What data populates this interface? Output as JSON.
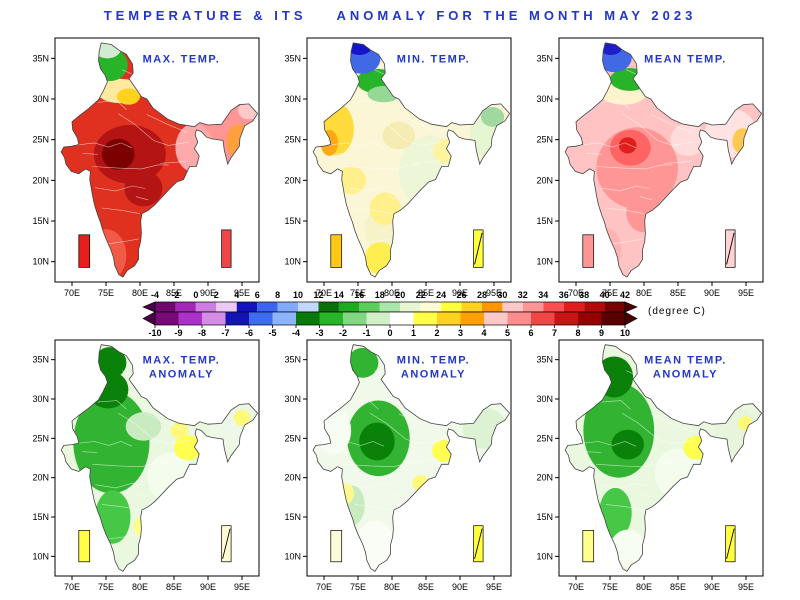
{
  "title": "TEMPERATURE & ITS    ANOMALY FOR THE MONTH MAY 2023",
  "unit_label": "(degree C)",
  "colors": {
    "accent": "#2236c8",
    "frame": "#000000"
  },
  "axis": {
    "x_ticks": [
      {
        "label": "70E",
        "lon": 70
      },
      {
        "label": "75E",
        "lon": 75
      },
      {
        "label": "80E",
        "lon": 80
      },
      {
        "label": "85E",
        "lon": 85
      },
      {
        "label": "90E",
        "lon": 90
      },
      {
        "label": "95E",
        "lon": 95
      }
    ],
    "y_ticks": [
      {
        "label": "35N",
        "lat": 35
      },
      {
        "label": "30N",
        "lat": 30
      },
      {
        "label": "25N",
        "lat": 25
      },
      {
        "label": "20N",
        "lat": 20
      },
      {
        "label": "15N",
        "lat": 15
      },
      {
        "label": "10N",
        "lat": 10
      }
    ]
  },
  "colorbars": [
    {
      "labels_position": "above",
      "labels": [
        "-4",
        "-2",
        "0",
        "2",
        "4",
        "6",
        "8",
        "10",
        "12",
        "14",
        "16",
        "18",
        "20",
        "22",
        "24",
        "26",
        "28",
        "30",
        "32",
        "34",
        "36",
        "38",
        "40",
        "42"
      ],
      "segment_colors": [
        "#6e0a6e",
        "#a028b4",
        "#cd7ce1",
        "#ecc8f5",
        "#1414be",
        "#3c64f0",
        "#82aaff",
        "#c3d8ff",
        "#0a6e0a",
        "#1eaa1e",
        "#5ace5a",
        "#aae6aa",
        "#e6f7d2",
        "#fffbd2",
        "#ffff3c",
        "#ffd21e",
        "#ff9600",
        "#ffc8c8",
        "#ff9696",
        "#ff5050",
        "#e11e1e",
        "#b40a0a",
        "#780000"
      ],
      "left_arrow": "#4b004b",
      "right_arrow": "#4b0000"
    },
    {
      "labels_position": "below",
      "labels": [
        "-10",
        "-9",
        "-8",
        "-7",
        "-6",
        "-5",
        "-4",
        "-3",
        "-2",
        "-1",
        "0",
        "1",
        "2",
        "3",
        "4",
        "5",
        "6",
        "7",
        "8",
        "9",
        "10"
      ],
      "segment_colors": [
        "#780a78",
        "#aa32c8",
        "#d48ce6",
        "#1414b4",
        "#3c6cf0",
        "#8cb4ff",
        "#0a780a",
        "#28b428",
        "#82d882",
        "#d2f0c8",
        "#ffffff",
        "#ffff46",
        "#ffd21e",
        "#ffa000",
        "#ffc8c8",
        "#ff8c8c",
        "#f04646",
        "#c81414",
        "#960000",
        "#5a0000"
      ],
      "left_arrow": "#4b004b",
      "right_arrow": "#4b0000"
    }
  ],
  "panels": [
    {
      "id": "max-temp",
      "label_lines": [
        "MAX. TEMP."
      ],
      "base_color": "#e03020",
      "regions": [
        {
          "c": [
            92.8,
            25.8
          ],
          "r": [
            4.8,
            3.6
          ],
          "f": "#ff9696"
        },
        {
          "c": [
            88.0,
            24.0
          ],
          "r": [
            2.8,
            3.0
          ],
          "f": "#ffaaaa"
        },
        {
          "c": [
            94.6,
            24.8
          ],
          "r": [
            1.9,
            2.1
          ],
          "f": "#ffa03c"
        },
        {
          "c": [
            96.0,
            28.6
          ],
          "r": [
            1.6,
            1.1
          ],
          "f": "#ffc8c8"
        },
        {
          "c": [
            78.5,
            23.2
          ],
          "r": [
            5.3,
            3.6
          ],
          "f": "#b41414"
        },
        {
          "c": [
            76.8,
            23.2
          ],
          "r": [
            2.4,
            1.9
          ],
          "f": "#7d0000"
        },
        {
          "c": [
            80.5,
            19.0
          ],
          "r": [
            2.8,
            2.2
          ],
          "f": "#b41414"
        },
        {
          "c": [
            75.0,
            10.8
          ],
          "r": [
            3.0,
            3.2
          ],
          "f": "#f05a46"
        },
        {
          "c": [
            77.0,
            31.0
          ],
          "r": [
            3.4,
            1.5
          ],
          "f": "#ffe8a0"
        },
        {
          "c": [
            78.3,
            30.3
          ],
          "r": [
            1.7,
            1.0
          ],
          "f": "#ffd21e"
        },
        {
          "c": [
            75.6,
            34.2
          ],
          "r": [
            2.6,
            2.0
          ],
          "f": "#28b428"
        },
        {
          "c": [
            75.2,
            36.2
          ],
          "r": [
            2.0,
            1.2
          ],
          "f": "#d2ecd2"
        }
      ],
      "island_boxes": {
        "left": {
          "color": "#e61e1e",
          "slash": false
        },
        "right": {
          "color": "#f04646",
          "slash": false
        }
      }
    },
    {
      "id": "min-temp",
      "label_lines": [
        "MIN. TEMP."
      ],
      "base_color": "#fbf6d6",
      "regions": [
        {
          "c": [
            85.5,
            21.0
          ],
          "r": [
            4.5,
            4.5
          ],
          "f": "#edf7d8"
        },
        {
          "c": [
            79.0,
            14.0
          ],
          "r": [
            3.0,
            3.0
          ],
          "f": "#f7f3c8"
        },
        {
          "c": [
            71.8,
            26.3
          ],
          "r": [
            2.6,
            3.2
          ],
          "f": "#ffdc3c"
        },
        {
          "c": [
            70.8,
            24.6
          ],
          "r": [
            1.3,
            1.6
          ],
          "f": "#ffaa14"
        },
        {
          "c": [
            74.0,
            20.0
          ],
          "r": [
            2.2,
            1.7
          ],
          "f": "#fff08c"
        },
        {
          "c": [
            79.0,
            16.5
          ],
          "r": [
            2.3,
            2.0
          ],
          "f": "#fff08c"
        },
        {
          "c": [
            78.3,
            10.4
          ],
          "r": [
            2.3,
            2.0
          ],
          "f": "#ffee50"
        },
        {
          "c": [
            87.8,
            23.6
          ],
          "r": [
            1.7,
            1.5
          ],
          "f": "#fff3a0"
        },
        {
          "c": [
            81.0,
            25.5
          ],
          "r": [
            2.4,
            1.7
          ],
          "f": "#f5ecb4"
        },
        {
          "c": [
            93.8,
            25.5
          ],
          "r": [
            2.4,
            2.6
          ],
          "f": "#e6f5d2"
        },
        {
          "c": [
            94.8,
            27.8
          ],
          "r": [
            1.7,
            1.2
          ],
          "f": "#a0d8a0"
        },
        {
          "c": [
            77.8,
            32.2
          ],
          "r": [
            3.0,
            1.5
          ],
          "f": "#28b428"
        },
        {
          "c": [
            78.8,
            30.6
          ],
          "r": [
            2.4,
            1.0
          ],
          "f": "#96d896"
        },
        {
          "c": [
            75.6,
            35.0
          ],
          "r": [
            2.7,
            1.9
          ],
          "f": "#4169e6"
        },
        {
          "c": [
            75.2,
            36.4
          ],
          "r": [
            1.8,
            1.0
          ],
          "f": "#1414c8"
        }
      ],
      "island_boxes": {
        "left": {
          "color": "#ffc814",
          "slash": false
        },
        "right": {
          "color": "#ffff3c",
          "slash": true
        }
      }
    },
    {
      "id": "mean-temp",
      "label_lines": [
        "MEAN TEMP."
      ],
      "base_color": "#ffc3c3",
      "regions": [
        {
          "c": [
            79.0,
            21.5
          ],
          "r": [
            6.0,
            5.0
          ],
          "f": "#ff9696"
        },
        {
          "c": [
            78.0,
            24.0
          ],
          "r": [
            3.0,
            2.2
          ],
          "f": "#ff6464"
        },
        {
          "c": [
            77.6,
            24.3
          ],
          "r": [
            1.3,
            1.0
          ],
          "f": "#e11e1e"
        },
        {
          "c": [
            80.0,
            16.0
          ],
          "r": [
            2.6,
            2.4
          ],
          "f": "#ff9696"
        },
        {
          "c": [
            74.5,
            11.5
          ],
          "r": [
            2.2,
            2.6
          ],
          "f": "#ffb4b4"
        },
        {
          "c": [
            86.5,
            25.0
          ],
          "r": [
            2.6,
            2.0
          ],
          "f": "#ffdcdc"
        },
        {
          "c": [
            92.8,
            25.8
          ],
          "r": [
            3.8,
            3.0
          ],
          "f": "#ffe3e3"
        },
        {
          "c": [
            94.5,
            24.8
          ],
          "r": [
            1.5,
            1.6
          ],
          "f": "#ffc850"
        },
        {
          "c": [
            77.0,
            30.7
          ],
          "r": [
            3.4,
            1.4
          ],
          "f": "#fff3cd"
        },
        {
          "c": [
            77.9,
            32.4
          ],
          "r": [
            2.9,
            1.4
          ],
          "f": "#28b428"
        },
        {
          "c": [
            75.6,
            35.1
          ],
          "r": [
            2.6,
            1.8
          ],
          "f": "#4169e6"
        },
        {
          "c": [
            75.1,
            36.4
          ],
          "r": [
            1.7,
            1.0
          ],
          "f": "#1e1ec8"
        }
      ],
      "island_boxes": {
        "left": {
          "color": "#ff9696",
          "slash": false
        },
        "right": {
          "color": "#ffd2d2",
          "slash": true
        }
      }
    },
    {
      "id": "max-temp-anomaly",
      "label_lines": [
        "MAX. TEMP.",
        "ANOMALY"
      ],
      "base_color": "#eaf8e0",
      "regions": [
        {
          "c": [
            75.8,
            24.5
          ],
          "r": [
            5.6,
            6.5
          ],
          "f": "#32b432"
        },
        {
          "c": [
            76.0,
            15.0
          ],
          "r": [
            2.6,
            3.4
          ],
          "f": "#46c846"
        },
        {
          "c": [
            75.3,
            31.2
          ],
          "r": [
            3.0,
            2.4
          ],
          "f": "#0a820a"
        },
        {
          "c": [
            75.6,
            34.6
          ],
          "r": [
            2.4,
            2.0
          ],
          "f": "#0a820a"
        },
        {
          "c": [
            84.5,
            20.0
          ],
          "r": [
            3.4,
            3.2
          ],
          "f": "#f4fcee"
        },
        {
          "c": [
            80.5,
            26.5
          ],
          "r": [
            2.6,
            1.8
          ],
          "f": "#c8ecc0"
        },
        {
          "c": [
            87.0,
            23.8
          ],
          "r": [
            2.0,
            1.6
          ],
          "f": "#ffff50"
        },
        {
          "c": [
            85.8,
            26.0
          ],
          "r": [
            1.3,
            1.0
          ],
          "f": "#fff878"
        },
        {
          "c": [
            93.5,
            26.0
          ],
          "r": [
            3.2,
            2.6
          ],
          "f": "#eef8e6"
        },
        {
          "c": [
            95.0,
            27.6
          ],
          "r": [
            1.2,
            1.0
          ],
          "f": "#fff878"
        },
        {
          "c": [
            80.2,
            13.8
          ],
          "r": [
            1.2,
            1.2
          ],
          "f": "#ffff8c"
        }
      ],
      "island_boxes": {
        "left": {
          "color": "#ffff46",
          "slash": false
        },
        "right": {
          "color": "#fffad2",
          "slash": true
        }
      }
    },
    {
      "id": "min-temp-anomaly",
      "label_lines": [
        "MIN. TEMP.",
        "ANOMALY"
      ],
      "base_color": "#f0f9ea",
      "regions": [
        {
          "c": [
            78.0,
            25.0
          ],
          "r": [
            4.6,
            4.8
          ],
          "f": "#32b432"
        },
        {
          "c": [
            77.8,
            24.6
          ],
          "r": [
            2.6,
            2.4
          ],
          "f": "#0a820a"
        },
        {
          "c": [
            75.7,
            34.6
          ],
          "r": [
            2.3,
            1.9
          ],
          "f": "#32b432"
        },
        {
          "c": [
            71.4,
            26.0
          ],
          "r": [
            2.6,
            3.0
          ],
          "f": "#f7fdf2"
        },
        {
          "c": [
            77.5,
            11.5
          ],
          "r": [
            3.0,
            3.0
          ],
          "f": "#fafdf5"
        },
        {
          "c": [
            74.0,
            16.5
          ],
          "r": [
            2.0,
            2.6
          ],
          "f": "#c8ecc0"
        },
        {
          "c": [
            87.6,
            23.4
          ],
          "r": [
            1.7,
            1.4
          ],
          "f": "#ffff50"
        },
        {
          "c": [
            84.2,
            19.3
          ],
          "r": [
            1.2,
            1.0
          ],
          "f": "#fff878"
        },
        {
          "c": [
            93.6,
            26.3
          ],
          "r": [
            3.2,
            2.6
          ],
          "f": "#ddf2d2"
        },
        {
          "c": [
            73.4,
            18.0
          ],
          "r": [
            1.0,
            1.3
          ],
          "f": "#fff88c"
        }
      ],
      "island_boxes": {
        "left": {
          "color": "#fdfcd8",
          "slash": false
        },
        "right": {
          "color": "#ffff3c",
          "slash": true
        }
      }
    },
    {
      "id": "mean-temp-anomaly",
      "label_lines": [
        "MEAN TEMP.",
        "ANOMALY"
      ],
      "base_color": "#eaf8e0",
      "regions": [
        {
          "c": [
            76.3,
            26.0
          ],
          "r": [
            5.2,
            6.0
          ],
          "f": "#32b432"
        },
        {
          "c": [
            75.6,
            32.8
          ],
          "r": [
            2.8,
            2.6
          ],
          "f": "#0a820a"
        },
        {
          "c": [
            77.6,
            24.2
          ],
          "r": [
            2.4,
            1.9
          ],
          "f": "#0a820a"
        },
        {
          "c": [
            75.8,
            15.5
          ],
          "r": [
            2.4,
            3.2
          ],
          "f": "#46c846"
        },
        {
          "c": [
            85.0,
            20.5
          ],
          "r": [
            3.4,
            3.2
          ],
          "f": "#f4fcee"
        },
        {
          "c": [
            87.6,
            23.8
          ],
          "r": [
            1.8,
            1.5
          ],
          "f": "#ffff50"
        },
        {
          "c": [
            93.6,
            26.0
          ],
          "r": [
            3.4,
            2.8
          ],
          "f": "#e6f5dc"
        },
        {
          "c": [
            94.9,
            26.9
          ],
          "r": [
            1.1,
            0.9
          ],
          "f": "#fff878"
        },
        {
          "c": [
            77.6,
            11.0
          ],
          "r": [
            2.6,
            2.4
          ],
          "f": "#f7fdf0"
        }
      ],
      "island_boxes": {
        "left": {
          "color": "#ffff8c",
          "slash": false
        },
        "right": {
          "color": "#ffff3c",
          "slash": true
        }
      }
    }
  ]
}
